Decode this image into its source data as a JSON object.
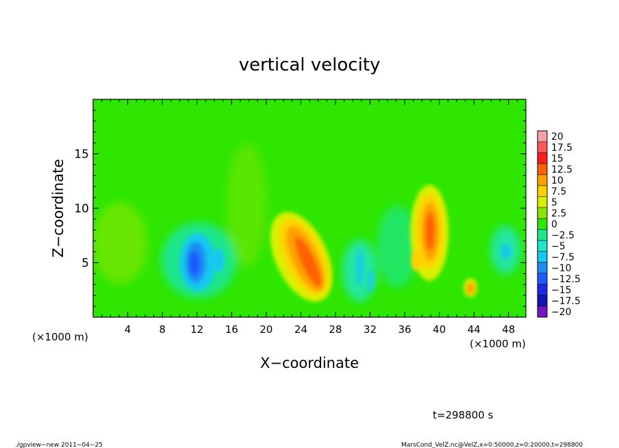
{
  "chart_data": {
    "type": "heatmap",
    "title": "vertical velocity",
    "xlabel": "X−coordinate",
    "ylabel": "Z−coordinate",
    "x_unit_left": "(×1000 m)",
    "x_unit_right": "(×1000 m)",
    "xlim": [
      0,
      50
    ],
    "ylim": [
      0,
      20
    ],
    "x_ticks": [
      4,
      8,
      12,
      16,
      20,
      24,
      28,
      32,
      36,
      40,
      44,
      48
    ],
    "x_tick_labels": [
      "4",
      "8",
      "12",
      "16",
      "20",
      "24",
      "28",
      "32",
      "36",
      "40",
      "44",
      "48"
    ],
    "y_ticks": [
      5,
      10,
      15
    ],
    "y_tick_labels": [
      "5",
      "10",
      "15"
    ],
    "colorbar": {
      "levels": [
        20,
        17.5,
        15,
        12.5,
        10,
        7.5,
        5,
        2.5,
        0,
        -2.5,
        -5,
        -7.5,
        -10,
        -12.5,
        -15,
        -17.5,
        -20
      ],
      "labels": [
        "20",
        "17.5",
        "15",
        "12.5",
        "10",
        "7.5",
        "5",
        "2.5",
        "0",
        "−2.5",
        "−5",
        "−7.5",
        "−10",
        "−12.5",
        "−15",
        "−17.5",
        "−20"
      ],
      "colors": [
        "#f4a0a8",
        "#ff5a5a",
        "#ff1e1e",
        "#ff6000",
        "#ffa000",
        "#ffd200",
        "#d8f000",
        "#8ce600",
        "#2ee600",
        "#1ee68c",
        "#1ee6c8",
        "#19c8f0",
        "#1e8cf5",
        "#1e5aff",
        "#1e28e6",
        "#1414b4",
        "#7814c8"
      ]
    },
    "features": [
      {
        "kind": "updraft",
        "x": 24.0,
        "z": 5.5,
        "peak": 13
      },
      {
        "kind": "updraft",
        "x": 38.8,
        "z": 7.5,
        "peak": 13
      },
      {
        "kind": "updraft",
        "x": 43.5,
        "z": 2.5,
        "peak": 10
      },
      {
        "kind": "downdraft",
        "x": 12.0,
        "z": 5.0,
        "peak": -13
      },
      {
        "kind": "downdraft",
        "x": 47.3,
        "z": 5.8,
        "peak": -7
      }
    ],
    "annotation_time": "t=298800 s"
  },
  "footer": {
    "left": "./gpview−new  2011−04−25",
    "right": "MarsCond_VelZ.nc@VelZ,x=0:50000,z=0:20000,t=298800"
  }
}
